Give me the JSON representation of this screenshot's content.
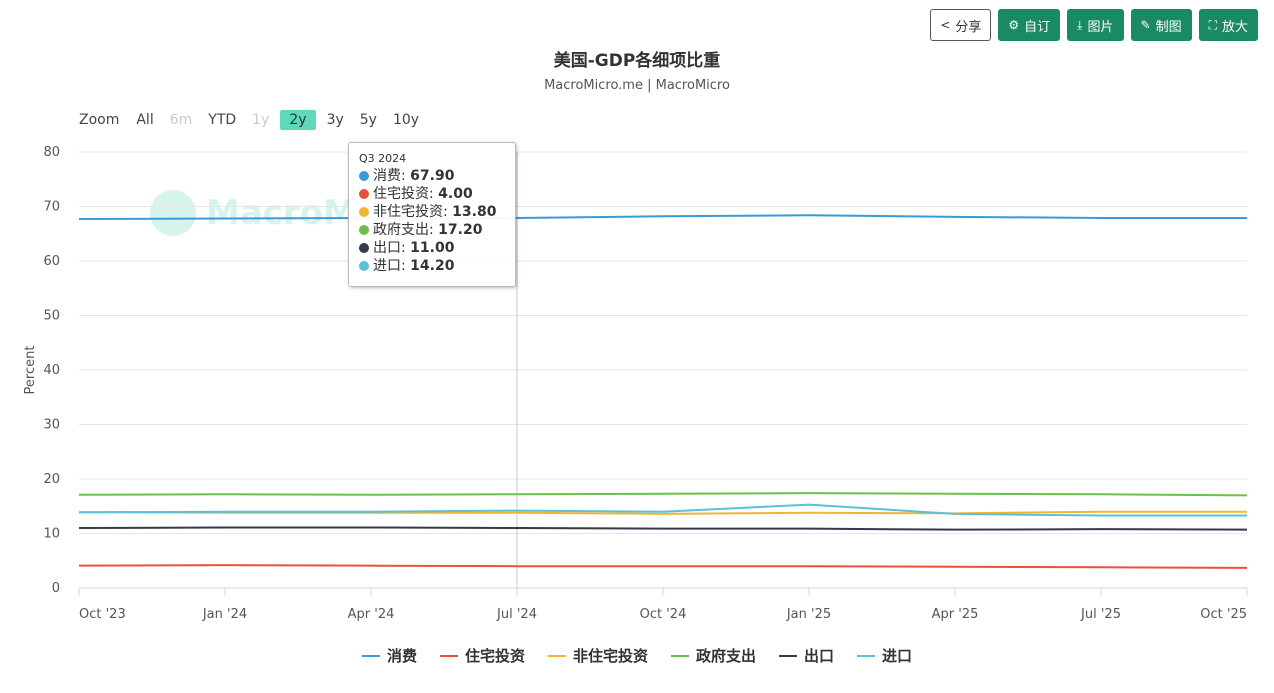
{
  "toolbar": {
    "share": "分享",
    "subscribe": "自订",
    "image": "图片",
    "draw": "制图",
    "expand": "放大"
  },
  "watermark": "MacroMicro",
  "zoom": {
    "label": "Zoom",
    "options": [
      "All",
      "6m",
      "YTD",
      "1y",
      "2y",
      "3y",
      "5y",
      "10y"
    ],
    "disabled": [
      "6m",
      "1y"
    ],
    "active": "2y"
  },
  "tooltip": {
    "header": "Q3 2024",
    "rows": [
      {
        "name": "消费",
        "value": "67.90",
        "color": "#3a9ad9"
      },
      {
        "name": "住宅投资",
        "value": "4.00",
        "color": "#e8513a"
      },
      {
        "name": "非住宅投资",
        "value": "13.80",
        "color": "#f2b531"
      },
      {
        "name": "政府支出",
        "value": "17.20",
        "color": "#6cc04a"
      },
      {
        "name": "出口",
        "value": "11.00",
        "color": "#343a4a"
      },
      {
        "name": "进口",
        "value": "14.20",
        "color": "#5bc0d8"
      }
    ]
  },
  "chart_data": {
    "type": "line",
    "title": "美国-GDP各细项比重",
    "subtitle": "MacroMicro.me | MacroMicro",
    "ylabel": "Percent",
    "ylim": [
      0,
      80
    ],
    "yticks": [
      0,
      10,
      20,
      30,
      40,
      50,
      60,
      70,
      80
    ],
    "x_tick_labels": [
      "Oct '23",
      "Jan '24",
      "Apr '24",
      "Jul '24",
      "Oct '24",
      "Jan '25",
      "Apr '25",
      "Jul '25",
      "Oct '25"
    ],
    "x": [
      "Q4 2023",
      "Q1 2024",
      "Q2 2024",
      "Q3 2024",
      "Q4 2024",
      "Q1 2025",
      "Q2 2025",
      "Q3 2025",
      "Q4 2025"
    ],
    "crosshair_at": "Q3 2024",
    "series": [
      {
        "name": "消费",
        "color": "#3a9ad9",
        "values": [
          67.7,
          67.8,
          67.9,
          67.9,
          68.2,
          68.4,
          68.1,
          67.9,
          67.9
        ]
      },
      {
        "name": "住宅投资",
        "color": "#e8513a",
        "values": [
          4.1,
          4.2,
          4.1,
          4.0,
          4.0,
          4.0,
          3.9,
          3.8,
          3.7
        ]
      },
      {
        "name": "非住宅投资",
        "color": "#f2b531",
        "values": [
          13.9,
          13.8,
          13.8,
          13.8,
          13.6,
          13.8,
          13.7,
          14.0,
          14.0
        ]
      },
      {
        "name": "政府支出",
        "color": "#6cc04a",
        "values": [
          17.1,
          17.2,
          17.1,
          17.2,
          17.3,
          17.4,
          17.3,
          17.2,
          17.0
        ]
      },
      {
        "name": "出口",
        "color": "#343a4a",
        "values": [
          11.0,
          11.1,
          11.1,
          11.0,
          10.9,
          10.9,
          10.7,
          10.8,
          10.7
        ]
      },
      {
        "name": "进口",
        "color": "#5bc0d8",
        "values": [
          13.9,
          14.0,
          14.0,
          14.2,
          14.0,
          15.3,
          13.6,
          13.3,
          13.3
        ]
      }
    ]
  }
}
